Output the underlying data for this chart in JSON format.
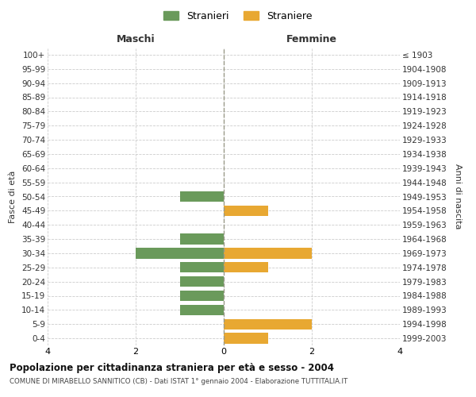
{
  "age_groups": [
    "0-4",
    "5-9",
    "10-14",
    "15-19",
    "20-24",
    "25-29",
    "30-34",
    "35-39",
    "40-44",
    "45-49",
    "50-54",
    "55-59",
    "60-64",
    "65-69",
    "70-74",
    "75-79",
    "80-84",
    "85-89",
    "90-94",
    "95-99",
    "100+"
  ],
  "birth_years": [
    "1999-2003",
    "1994-1998",
    "1989-1993",
    "1984-1988",
    "1979-1983",
    "1974-1978",
    "1969-1973",
    "1964-1968",
    "1959-1963",
    "1954-1958",
    "1949-1953",
    "1944-1948",
    "1939-1943",
    "1934-1938",
    "1929-1933",
    "1924-1928",
    "1919-1923",
    "1914-1918",
    "1909-1913",
    "1904-1908",
    "≤ 1903"
  ],
  "maschi": [
    0,
    0,
    1,
    1,
    1,
    1,
    2,
    1,
    0,
    0,
    1,
    0,
    0,
    0,
    0,
    0,
    0,
    0,
    0,
    0,
    0
  ],
  "femmine": [
    1,
    2,
    0,
    0,
    0,
    1,
    2,
    0,
    0,
    1,
    0,
    0,
    0,
    0,
    0,
    0,
    0,
    0,
    0,
    0,
    0
  ],
  "color_maschi": "#6a9a5b",
  "color_femmine": "#e8a832",
  "title_main": "Popolazione per cittadinanza straniera per età e sesso - 2004",
  "title_sub": "COMUNE DI MIRABELLO SANNITICO (CB) - Dati ISTAT 1° gennaio 2004 - Elaborazione TUTTITALIA.IT",
  "label_maschi": "Stranieri",
  "label_femmine": "Straniere",
  "xlabel_left": "Maschi",
  "xlabel_right": "Femmine",
  "ylabel_left": "Fasce di età",
  "ylabel_right": "Anni di nascita",
  "xlim": 4,
  "background_color": "#ffffff",
  "grid_color": "#cccccc"
}
